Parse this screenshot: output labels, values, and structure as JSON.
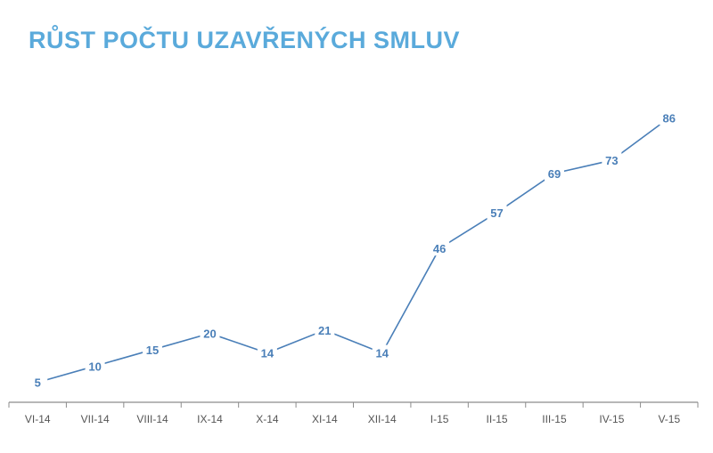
{
  "title": "RŮST POČTU UZAVŘENÝCH SMLUV",
  "colors": {
    "title": "#5aaadb",
    "line": "#4a7fb8",
    "label": "#4a7fb8",
    "axis": "#8c8c8c"
  },
  "chart_data": {
    "type": "line",
    "title": "RŮST POČTU UZAVŘENÝCH SMLUV",
    "categories": [
      "VI-14",
      "VII-14",
      "VIII-14",
      "IX-14",
      "X-14",
      "XI-14",
      "XII-14",
      "I-15",
      "II-15",
      "III-15",
      "IV-15",
      "V-15"
    ],
    "series": [
      {
        "values": [
          5,
          10,
          15,
          20,
          14,
          21,
          14,
          46,
          57,
          69,
          73,
          86
        ]
      }
    ],
    "ylim": [
      0,
      90
    ],
    "grid": false,
    "legend": "none",
    "data_labels": true
  }
}
